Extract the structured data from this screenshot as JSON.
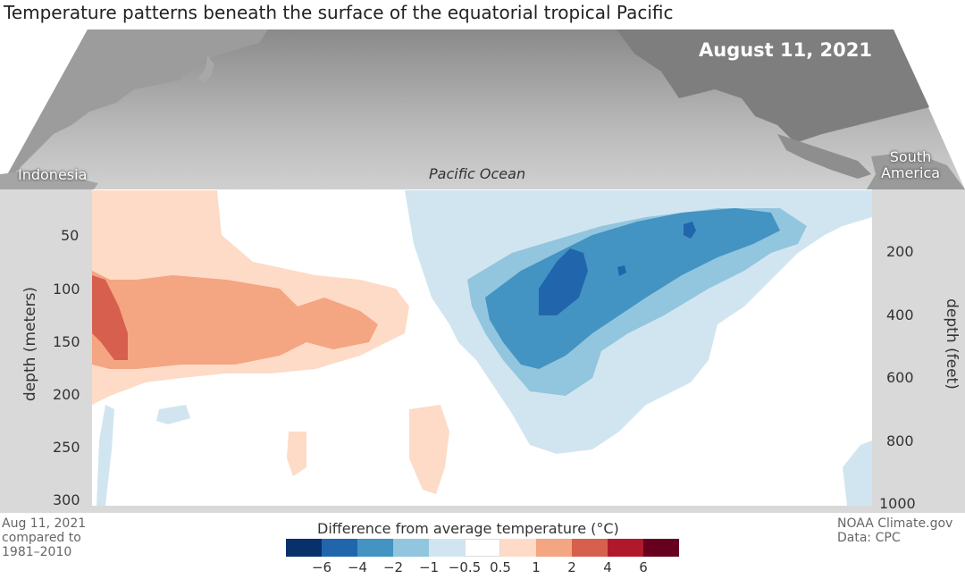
{
  "title": "Temperature patterns beneath the surface of the equatorial tropical Pacific",
  "date": "August 11, 2021",
  "map_labels": {
    "indonesia": "Indonesia",
    "south_america_line1": "South",
    "south_america_line2": "America",
    "ocean": "Pacific Ocean"
  },
  "axes": {
    "left_label": "depth (meters)",
    "right_label": "depth (feet)",
    "left_ticks": [
      "50",
      "100",
      "150",
      "200",
      "250",
      "300"
    ],
    "right_ticks": [
      "200",
      "400",
      "600",
      "800",
      "1000"
    ]
  },
  "legend": {
    "title": "Difference from average temperature (°C)",
    "labels": [
      "−6",
      "−4",
      "−2",
      "−1",
      "−0.5",
      "0.5",
      "1",
      "2",
      "4",
      "6"
    ],
    "colors": [
      "#08306b",
      "#2166ac",
      "#4393c3",
      "#92c5de",
      "#d1e5f0",
      "#ffffff",
      "#fddbc7",
      "#f4a582",
      "#d6604d",
      "#b2182b",
      "#67001f"
    ]
  },
  "footer": {
    "left_line1": "Aug 11, 2021",
    "left_line2": "compared to",
    "left_line3": "1981–2010",
    "right_line1": "NOAA Climate.gov",
    "right_line2": "Data: CPC"
  }
}
